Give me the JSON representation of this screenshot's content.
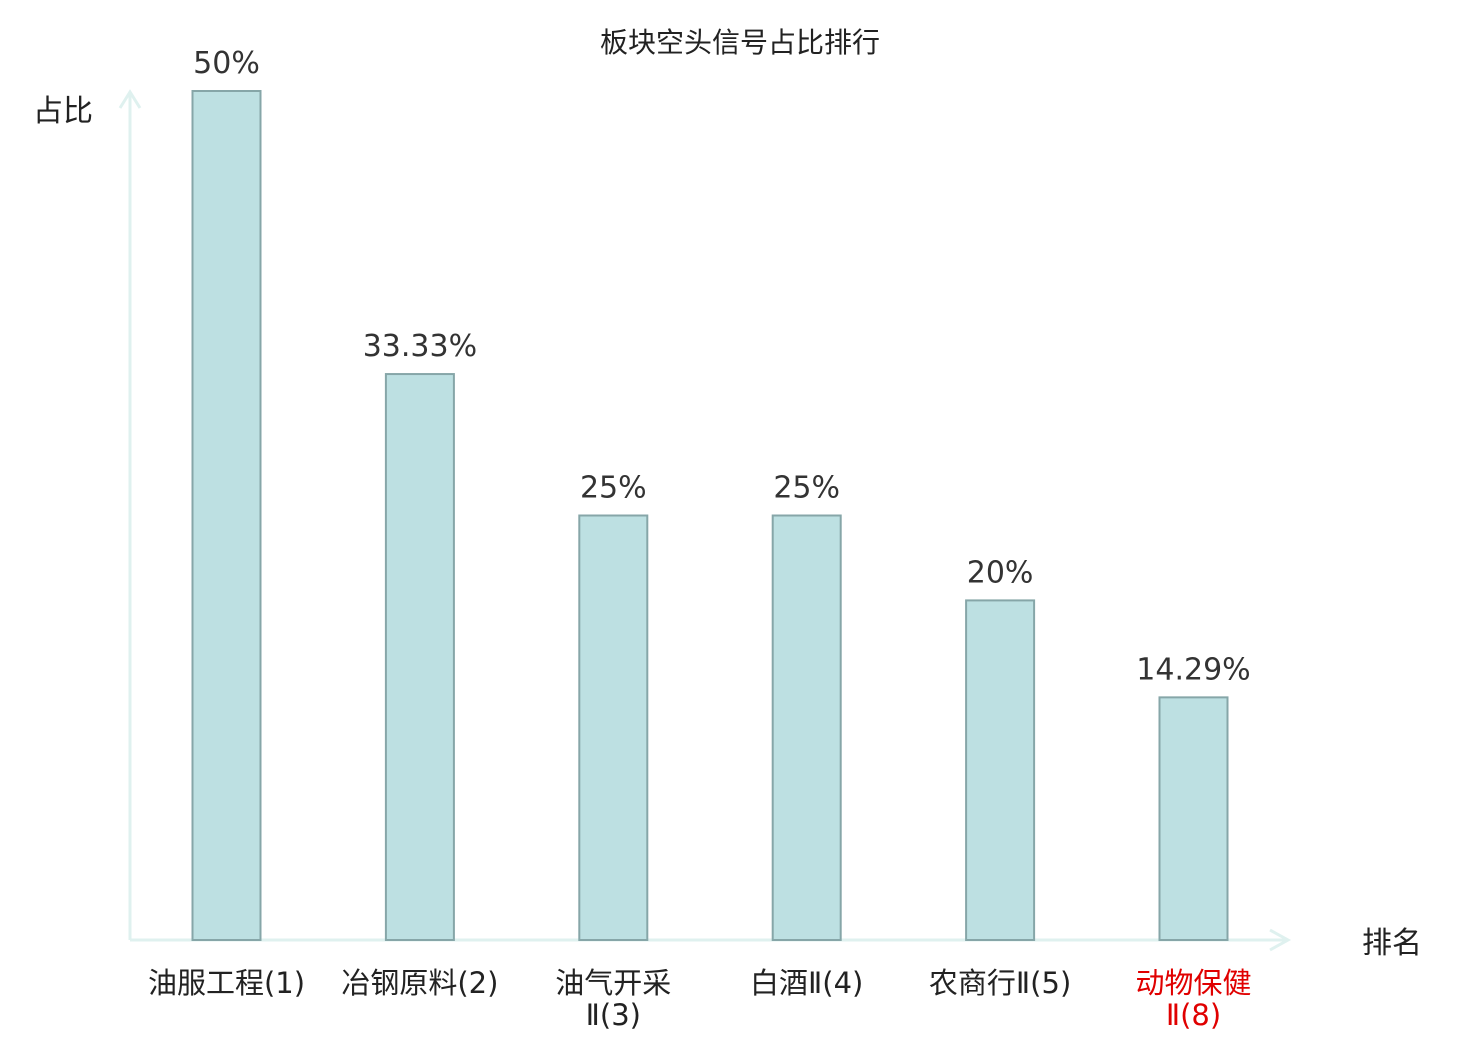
{
  "chart_data": {
    "type": "bar",
    "title": "板块空头信号占比排行",
    "xlabel": "排名",
    "ylabel": "占比",
    "categories": [
      [
        "油服工程(1)"
      ],
      [
        "冶钢原料(2)"
      ],
      [
        "油气开采",
        "Ⅱ(3)"
      ],
      [
        "白酒Ⅱ(4)"
      ],
      [
        "农商行Ⅱ(5)"
      ],
      [
        "动物保健",
        "Ⅱ(8)"
      ]
    ],
    "values": [
      50,
      33.33,
      25,
      25,
      20,
      14.29
    ],
    "value_labels": [
      "50%",
      "33.33%",
      "25%",
      "25%",
      "20%",
      "14.29%"
    ],
    "ylim": [
      0,
      50
    ],
    "grid": false,
    "highlighted_category_index": 5,
    "colors": {
      "bar_fill": "#bde0e2",
      "bar_stroke": "#86a6a8",
      "axis": "#dff1ef",
      "label_text": "#222222",
      "highlight_text": "#e00000"
    }
  }
}
